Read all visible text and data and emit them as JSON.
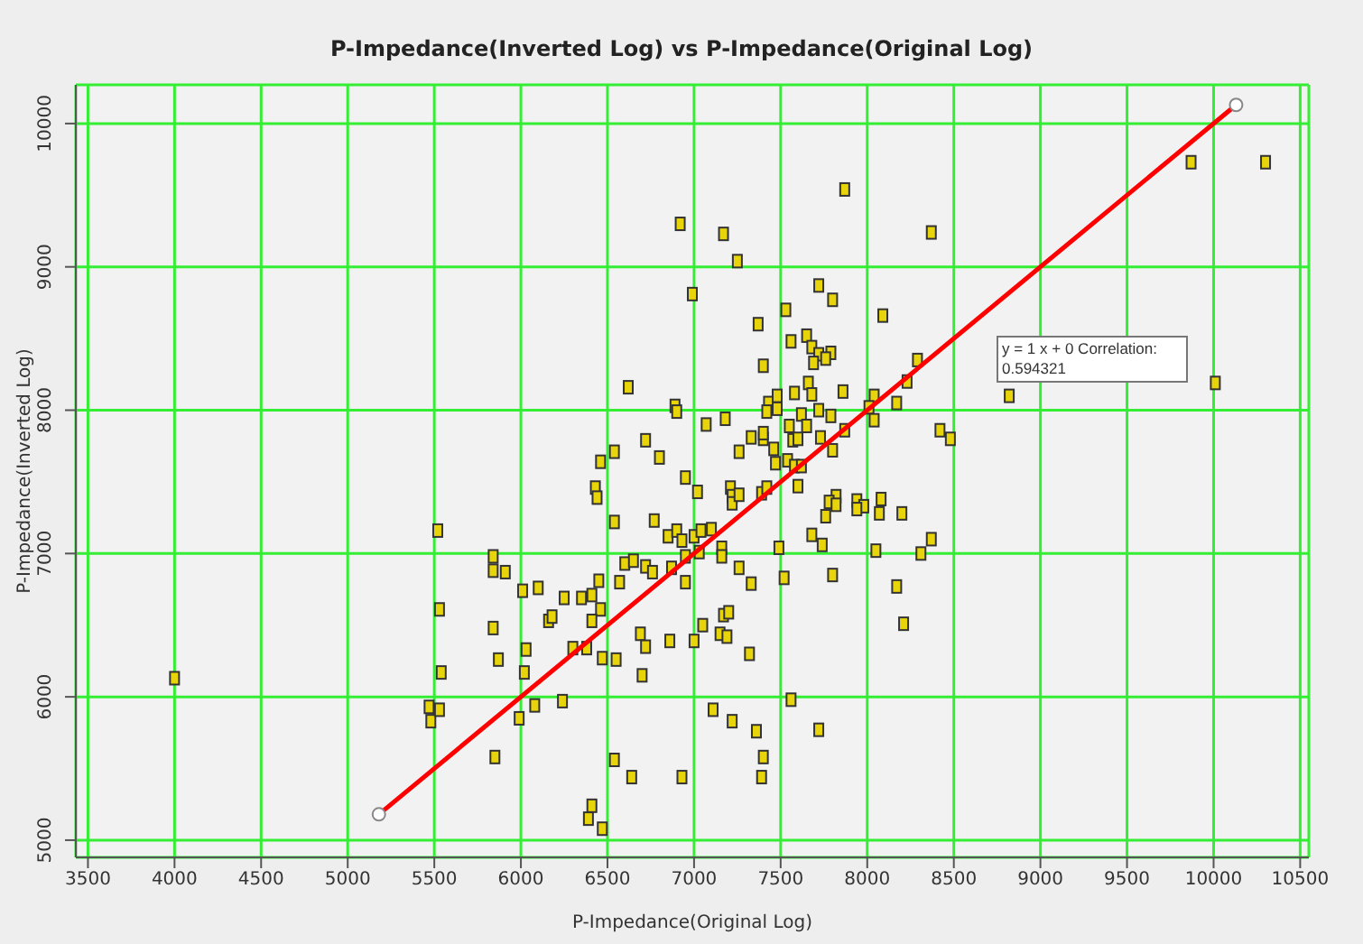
{
  "chart_data": {
    "type": "scatter",
    "title": "P-Impedance(Inverted Log) vs P-Impedance(Original Log)",
    "xlabel": "P-Impedance(Original Log)",
    "ylabel": "P-Impedance(Inverted Log)",
    "annotations": [
      "y = 1 x + 0 Correlation: 0.594321"
    ],
    "xlim": [
      3430,
      10550
    ],
    "ylim": [
      4880,
      10270
    ],
    "xticks": [
      3500,
      4000,
      4500,
      5000,
      5500,
      6000,
      6500,
      7000,
      7500,
      8000,
      8500,
      9000,
      9500,
      10000,
      10500
    ],
    "yticks": [
      5000,
      6000,
      7000,
      8000,
      9000,
      10000
    ],
    "grid": true,
    "series": [
      {
        "type": "scatter",
        "marker": "square",
        "color": "#e8d40a",
        "x": [
          7870,
          9870,
          10300,
          6920,
          7170,
          7250,
          6990,
          7720,
          7800,
          7530,
          7370,
          7560,
          7650,
          7680,
          7720,
          7790,
          7760,
          7690,
          7400,
          6620,
          7660,
          7580,
          7680,
          6890,
          6900,
          7430,
          7480,
          7480,
          7420,
          7070,
          7180,
          7620,
          7720,
          7790,
          7550,
          7650,
          7730,
          7800,
          7330,
          7400,
          7400,
          7570,
          7600,
          7460,
          7260,
          6720,
          6540,
          6800,
          6460,
          7540,
          7470,
          7580,
          7620,
          6950,
          6430,
          6440,
          7020,
          7210,
          7220,
          7220,
          7260,
          7390,
          7420,
          7600,
          7820,
          7780,
          7760,
          6540,
          6770,
          6850,
          6900,
          6930,
          7000,
          7040,
          7100,
          7160,
          7160,
          7260,
          7490,
          7680,
          7740,
          6950,
          7030,
          6600,
          6650,
          6720,
          6760,
          6870,
          5840,
          5840,
          5910,
          5520,
          6010,
          6100,
          6250,
          6350,
          6410,
          6460,
          6450,
          6570,
          6160,
          6180,
          6410,
          5840,
          5870,
          5530,
          5540,
          6030,
          6020,
          6300,
          6380,
          6470,
          6550,
          6690,
          6720,
          6700,
          6860,
          7000,
          7050,
          7150,
          7190,
          7170,
          7200,
          7320,
          6950,
          7330,
          7520,
          7800,
          5470,
          5480,
          5530,
          5850,
          6080,
          5990,
          6240,
          6540,
          6640,
          6410,
          6390,
          6470,
          6930,
          7110,
          7220,
          7360,
          7400,
          7390,
          7560,
          7720,
          4000,
          8370,
          8090,
          8290,
          8230,
          8040,
          8010,
          8170,
          8040,
          7860,
          8420,
          8480,
          8820,
          10010,
          7870,
          7940,
          7980,
          7940,
          8080,
          8070,
          8200,
          8370,
          8310,
          8050,
          7820,
          8170,
          8210
        ],
        "values": [
          9540,
          9730,
          9730,
          9300,
          9230,
          9040,
          8810,
          8870,
          8770,
          8700,
          8600,
          8480,
          8520,
          8440,
          8390,
          8400,
          8360,
          8330,
          8310,
          8160,
          8190,
          8120,
          8110,
          8030,
          7990,
          8050,
          8100,
          8010,
          7990,
          7900,
          7940,
          7970,
          8000,
          7960,
          7890,
          7890,
          7810,
          7720,
          7810,
          7800,
          7840,
          7790,
          7800,
          7730,
          7710,
          7790,
          7710,
          7670,
          7640,
          7650,
          7630,
          7610,
          7610,
          7530,
          7460,
          7390,
          7430,
          7460,
          7400,
          7350,
          7410,
          7420,
          7460,
          7470,
          7400,
          7360,
          7260,
          7220,
          7230,
          7120,
          7160,
          7090,
          7120,
          7160,
          7170,
          7040,
          6980,
          6900,
          7040,
          7130,
          7060,
          6980,
          7010,
          6930,
          6950,
          6910,
          6870,
          6900,
          6980,
          6880,
          6870,
          7160,
          6740,
          6760,
          6690,
          6690,
          6710,
          6610,
          6810,
          6800,
          6530,
          6560,
          6530,
          6480,
          6260,
          6610,
          6170,
          6330,
          6170,
          6340,
          6340,
          6270,
          6260,
          6440,
          6350,
          6150,
          6390,
          6390,
          6500,
          6440,
          6420,
          6570,
          6590,
          6300,
          6800,
          6790,
          6830,
          6850,
          5930,
          5830,
          5910,
          5580,
          5940,
          5850,
          5970,
          5560,
          5440,
          5240,
          5150,
          5080,
          5440,
          5910,
          5830,
          5760,
          5580,
          5440,
          5980,
          5770,
          6130,
          9240,
          8660,
          8350,
          8200,
          8100,
          8020,
          8050,
          7930,
          8130,
          7860,
          7800,
          8100,
          8190,
          7860,
          7370,
          7330,
          7310,
          7380,
          7280,
          7280,
          7100,
          7000,
          7020,
          7340,
          6770,
          6510
        ]
      },
      {
        "type": "line",
        "marker": "circle",
        "color": "#ff0000",
        "x": [
          5180,
          10130
        ],
        "values": [
          5180,
          10130
        ]
      }
    ]
  }
}
